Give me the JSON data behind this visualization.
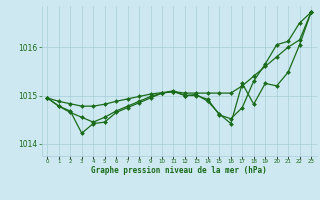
{
  "title": "Graphe pression niveau de la mer (hPa)",
  "background_color": "#cde8f0",
  "grid_color": "#a8cdd8",
  "line_color": "#1a6b1a",
  "marker_color": "#1a6b1a",
  "xlim": [
    -0.5,
    23.5
  ],
  "ylim": [
    1013.75,
    1016.85
  ],
  "yticks": [
    1014,
    1015,
    1016
  ],
  "xticks": [
    0,
    1,
    2,
    3,
    4,
    5,
    6,
    7,
    8,
    9,
    10,
    11,
    12,
    13,
    14,
    15,
    16,
    17,
    18,
    19,
    20,
    21,
    22,
    23
  ],
  "series": [
    {
      "x": [
        0,
        1,
        2,
        3,
        4,
        5,
        6,
        7,
        8,
        9,
        10,
        11,
        12,
        13,
        14,
        15,
        16,
        17,
        18,
        19,
        20,
        21,
        22,
        23
      ],
      "y": [
        1014.95,
        1014.88,
        1014.83,
        1014.78,
        1014.78,
        1014.82,
        1014.88,
        1014.93,
        1014.98,
        1015.03,
        1015.06,
        1015.08,
        1015.05,
        1015.05,
        1015.05,
        1015.05,
        1015.05,
        1015.2,
        1015.4,
        1015.6,
        1015.8,
        1016.0,
        1016.15,
        1016.72
      ],
      "marker": "D",
      "markersize": 2.0,
      "linewidth": 0.9
    },
    {
      "x": [
        0,
        1,
        2,
        3,
        4,
        5,
        6,
        7,
        8,
        9,
        10,
        11,
        12,
        13,
        14,
        15,
        16,
        17,
        18,
        19,
        20,
        21,
        22,
        23
      ],
      "y": [
        1014.95,
        1014.78,
        1014.68,
        1014.22,
        1014.42,
        1014.45,
        1014.65,
        1014.75,
        1014.85,
        1014.95,
        1015.05,
        1015.08,
        1015.0,
        1015.02,
        1014.88,
        1014.62,
        1014.42,
        1015.25,
        1014.82,
        1015.25,
        1015.2,
        1015.48,
        1016.05,
        1016.72
      ],
      "marker": "D",
      "markersize": 2.0,
      "linewidth": 0.9
    },
    {
      "x": [
        0,
        1,
        2,
        3,
        4,
        5,
        6,
        7,
        8,
        9,
        10,
        11,
        12,
        13,
        14,
        15,
        16,
        17,
        18,
        19,
        20,
        21,
        22,
        23
      ],
      "y": [
        1014.95,
        1014.78,
        1014.65,
        1014.55,
        1014.45,
        1014.55,
        1014.68,
        1014.78,
        1014.88,
        1014.98,
        1015.05,
        1015.1,
        1015.0,
        1015.0,
        1014.92,
        1014.6,
        1014.52,
        1014.75,
        1015.3,
        1015.65,
        1016.05,
        1016.12,
        1016.5,
        1016.72
      ],
      "marker": "D",
      "markersize": 2.0,
      "linewidth": 0.9
    }
  ]
}
